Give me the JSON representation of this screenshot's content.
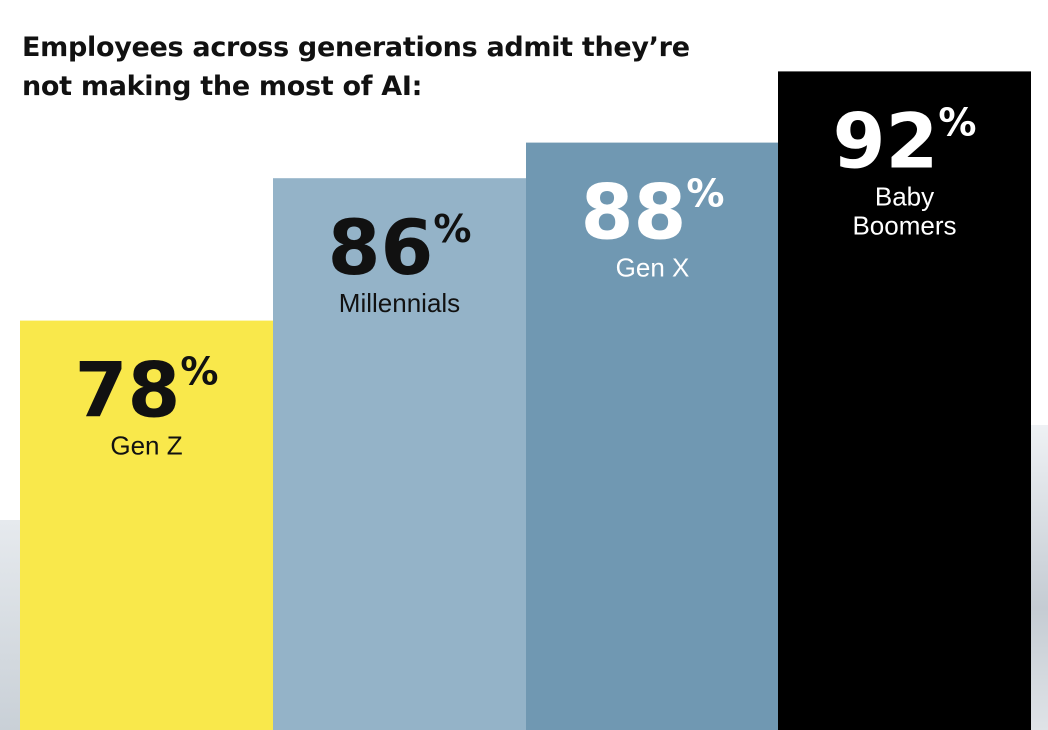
{
  "title": "Employees across generations admit they’re not making the most of AI:",
  "chart_data": {
    "type": "bar",
    "title": "Employees across generations admit they’re not making the most of AI:",
    "categories": [
      "Gen Z",
      "Millennials",
      "Gen X",
      "Baby Boomers"
    ],
    "values": [
      78,
      86,
      88,
      92
    ],
    "value_labels": [
      "78",
      "86",
      "88",
      "92"
    ],
    "value_suffix": "%",
    "category_lines": [
      [
        "Gen Z"
      ],
      [
        "Millennials"
      ],
      [
        "Gen X"
      ],
      [
        "Baby",
        "Boomers"
      ]
    ],
    "colors": [
      "#f9e84b",
      "#94b3c8",
      "#7098b2",
      "#000000"
    ],
    "text_colors": [
      "#111111",
      "#111111",
      "#ffffff",
      "#ffffff"
    ],
    "ylim": [
      0,
      100
    ],
    "xlabel": "",
    "ylabel": "",
    "grid": false,
    "legend": "none"
  }
}
